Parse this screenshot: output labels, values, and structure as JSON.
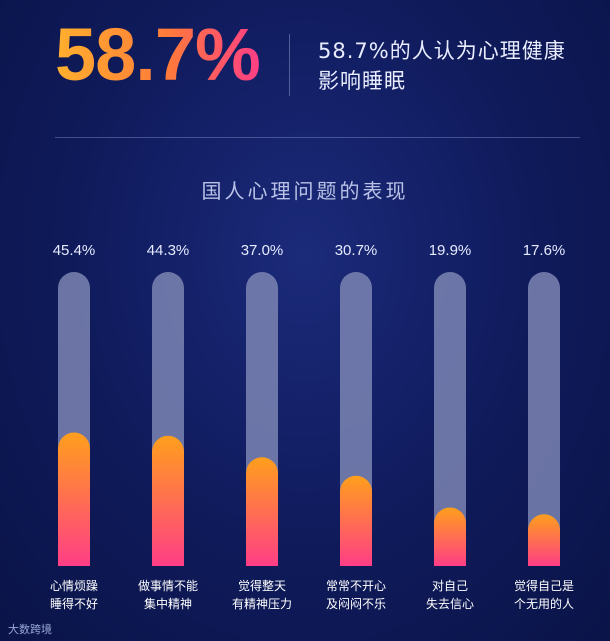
{
  "headline": {
    "percent": "58.7%",
    "text": "58.7%的人认为心理健康影响睡眠"
  },
  "watermark": "大数跨境",
  "colors": {
    "background": "#0f1a5a",
    "track": "#7b85b3",
    "bar_top": "#ff9f1c",
    "bar_bottom": "#ff3e86"
  },
  "chart_data": {
    "type": "bar",
    "title": "国人心理问题的表现",
    "categories": [
      [
        "心情烦躁",
        "睡得不好"
      ],
      [
        "做事情不能",
        "集中精神"
      ],
      [
        "觉得整天",
        "有精神压力"
      ],
      [
        "常常不开心",
        "及闷闷不乐"
      ],
      [
        "对自己",
        "失去信心"
      ],
      [
        "觉得自己是",
        "个无用的人"
      ]
    ],
    "values": [
      45.4,
      44.3,
      37.0,
      30.7,
      19.9,
      17.6
    ],
    "labels": [
      "45.4%",
      "44.3%",
      "37.0%",
      "30.7%",
      "19.9%",
      "17.6%"
    ],
    "ylim": [
      0,
      100
    ],
    "grid": false,
    "legend": "none"
  }
}
